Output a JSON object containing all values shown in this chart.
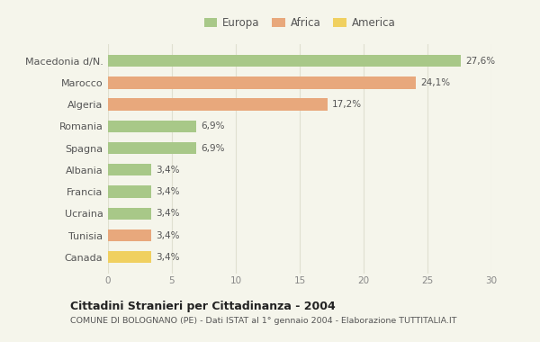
{
  "categories": [
    "Macedonia d/N.",
    "Marocco",
    "Algeria",
    "Romania",
    "Spagna",
    "Albania",
    "Francia",
    "Ucraina",
    "Tunisia",
    "Canada"
  ],
  "values": [
    27.6,
    24.1,
    17.2,
    6.9,
    6.9,
    3.4,
    3.4,
    3.4,
    3.4,
    3.4
  ],
  "labels": [
    "27,6%",
    "24,1%",
    "17,2%",
    "6,9%",
    "6,9%",
    "3,4%",
    "3,4%",
    "3,4%",
    "3,4%",
    "3,4%"
  ],
  "colors": [
    "#a8c888",
    "#e8a87c",
    "#e8a87c",
    "#a8c888",
    "#a8c888",
    "#a8c888",
    "#a8c888",
    "#a8c888",
    "#e8a87c",
    "#f0d060"
  ],
  "legend_labels": [
    "Europa",
    "Africa",
    "America"
  ],
  "legend_colors": [
    "#a8c888",
    "#e8a87c",
    "#f0d060"
  ],
  "title_bold": "Cittadini Stranieri per Cittadinanza - 2004",
  "subtitle": "COMUNE DI BOLOGNANO (PE) - Dati ISTAT al 1° gennaio 2004 - Elaborazione TUTTITALIA.IT",
  "xlim": [
    0,
    30
  ],
  "xticks": [
    0,
    5,
    10,
    15,
    20,
    25,
    30
  ],
  "background_color": "#f5f5eb",
  "grid_color": "#e0e0d0",
  "bar_height": 0.55
}
